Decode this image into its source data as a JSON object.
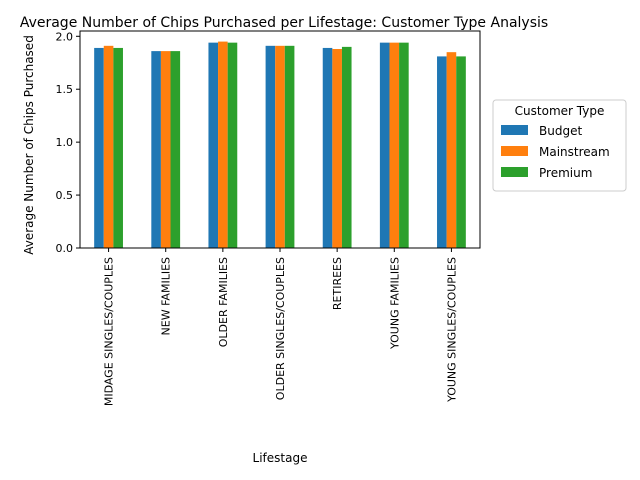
{
  "chart_data": {
    "type": "bar",
    "title": "Average Number of Chips Purchased per Lifestage: Customer Type Analysis",
    "xlabel": "Lifestage",
    "ylabel": "Average Number of Chips Purchased",
    "ylim": [
      0,
      2.05
    ],
    "yticks": [
      "0.0",
      "0.5",
      "1.0",
      "1.5",
      "2.0"
    ],
    "grid": false,
    "categories": [
      "MIDAGE SINGLES/COUPLES",
      "NEW FAMILIES",
      "OLDER FAMILIES",
      "OLDER SINGLES/COUPLES",
      "RETIREES",
      "YOUNG FAMILIES",
      "YOUNG SINGLES/COUPLES"
    ],
    "legend": {
      "title": "Customer Type",
      "placement": "center-right outside"
    },
    "series": [
      {
        "name": "Budget",
        "color": "#1f77b4",
        "values": [
          1.89,
          1.86,
          1.94,
          1.91,
          1.89,
          1.94,
          1.81
        ]
      },
      {
        "name": "Mainstream",
        "color": "#ff7f0e",
        "values": [
          1.91,
          1.86,
          1.95,
          1.91,
          1.88,
          1.94,
          1.85
        ]
      },
      {
        "name": "Premium",
        "color": "#2ca02c",
        "values": [
          1.89,
          1.86,
          1.94,
          1.91,
          1.9,
          1.94,
          1.81
        ]
      }
    ]
  }
}
